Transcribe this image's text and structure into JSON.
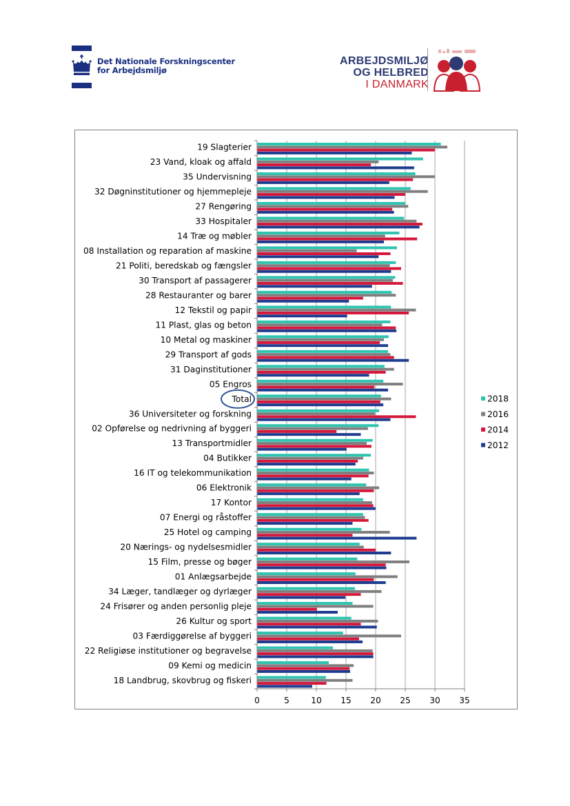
{
  "header": {
    "nfa_line1": "Det Nationale Forskningscenter",
    "nfa_line2": "for Arbejdsmiljø",
    "amh_line1": "ARBEJDSMILJØ",
    "amh_line2": "OG HELBRED",
    "amh_line3": "I DANMARK"
  },
  "colors": {
    "2018": "#2ec4b0",
    "2016": "#7f7f7f",
    "2014": "#d5173b",
    "2012": "#1d3b8f",
    "grid": "#a6a6a6",
    "nfa_blue": "#1a2f80",
    "amh_blue": "#2d3a74",
    "amh_red": "#c8202f",
    "total_circle": "#2f5597"
  },
  "chart_data": {
    "type": "bar",
    "orientation": "horizontal",
    "title": "",
    "xlabel": "",
    "ylabel": "",
    "xlim": [
      0,
      35
    ],
    "xticks": [
      0,
      5,
      10,
      15,
      20,
      25,
      30,
      35
    ],
    "grid": "vertical at 5, 10 .. 35 (solid)",
    "legend_position": "right",
    "highlighted_category": "Total",
    "categories": [
      "19 Slagterier",
      "23 Vand, kloak og affald",
      "35 Undervisning",
      "32 Døgninstitutioner og hjemmepleje",
      "27 Rengøring",
      "33 Hospitaler",
      "14 Træ og møbler",
      "08 Installation og reparation af maskine",
      "21 Politi, beredskab og fængsler",
      "30 Transport af passagerer",
      "28 Restauranter og barer",
      "12 Tekstil og papir",
      "11 Plast, glas og beton",
      "10 Metal og maskiner",
      "29 Transport af gods",
      "31 Daginstitutioner",
      "05 Engros",
      "Total",
      "36 Universiteter og forskning",
      "02 Opførelse og nedrivning af byggeri",
      "13 Transportmidler",
      "04 Butikker",
      "16 IT og telekommunikation",
      "06 Elektronik",
      "17 Kontor",
      "07 Energi og råstoffer",
      "25 Hotel og camping",
      "20 Nærings- og nydelsesmidler",
      "15 Film, presse og bøger",
      "01 Anlægsarbejde",
      "34 Læger, tandlæger og dyrlæger",
      "24 Frisører og anden personlig pleje",
      "26 Kultur og sport",
      "03 Færdiggørelse af byggeri",
      "22 Religiøse institutioner og begravelse",
      "09 Kemi og medicin",
      "18 Landbrug, skovbrug og fiskeri"
    ],
    "series": [
      {
        "name": "2018",
        "values": [
          31.0,
          28.0,
          26.7,
          25.9,
          25.0,
          24.8,
          24.0,
          23.6,
          23.4,
          23.3,
          22.7,
          22.6,
          22.5,
          22.2,
          22.1,
          21.5,
          21.3,
          20.9,
          20.6,
          20.5,
          19.5,
          19.2,
          18.9,
          18.4,
          17.9,
          17.9,
          17.6,
          17.3,
          16.9,
          16.6,
          16.5,
          16.1,
          15.9,
          14.5,
          12.8,
          12.1,
          11.6
        ]
      },
      {
        "name": "2016",
        "values": [
          32.1,
          20.5,
          30.0,
          28.8,
          25.5,
          26.9,
          21.6,
          16.8,
          22.4,
          22.9,
          23.4,
          26.8,
          21.1,
          21.4,
          22.5,
          23.1,
          24.6,
          22.6,
          19.9,
          18.7,
          18.5,
          17.9,
          19.7,
          20.6,
          19.4,
          18.2,
          22.4,
          18.0,
          25.7,
          23.7,
          21.0,
          19.6,
          20.4,
          24.3,
          19.5,
          16.3,
          16.1
        ]
      },
      {
        "name": "2014",
        "values": [
          30.0,
          19.2,
          26.3,
          25.0,
          22.8,
          27.9,
          27.0,
          22.5,
          24.3,
          24.6,
          17.9,
          25.6,
          23.4,
          20.7,
          23.1,
          21.7,
          19.8,
          20.8,
          26.8,
          13.4,
          19.3,
          17.0,
          18.8,
          19.7,
          19.6,
          18.8,
          16.1,
          20.0,
          21.7,
          19.7,
          17.5,
          10.1,
          17.5,
          17.2,
          19.6,
          15.6,
          11.7
        ]
      },
      {
        "name": "2012",
        "values": [
          26.1,
          26.5,
          22.3,
          23.2,
          23.1,
          27.4,
          21.4,
          20.5,
          22.6,
          19.4,
          15.5,
          15.2,
          23.5,
          22.1,
          25.6,
          18.9,
          22.1,
          21.3,
          22.5,
          17.5,
          15.1,
          16.6,
          15.9,
          17.3,
          20.0,
          16.1,
          26.9,
          22.6,
          21.8,
          21.7,
          14.9,
          13.6,
          20.2,
          17.8,
          19.6,
          15.7,
          9.3
        ]
      }
    ]
  }
}
